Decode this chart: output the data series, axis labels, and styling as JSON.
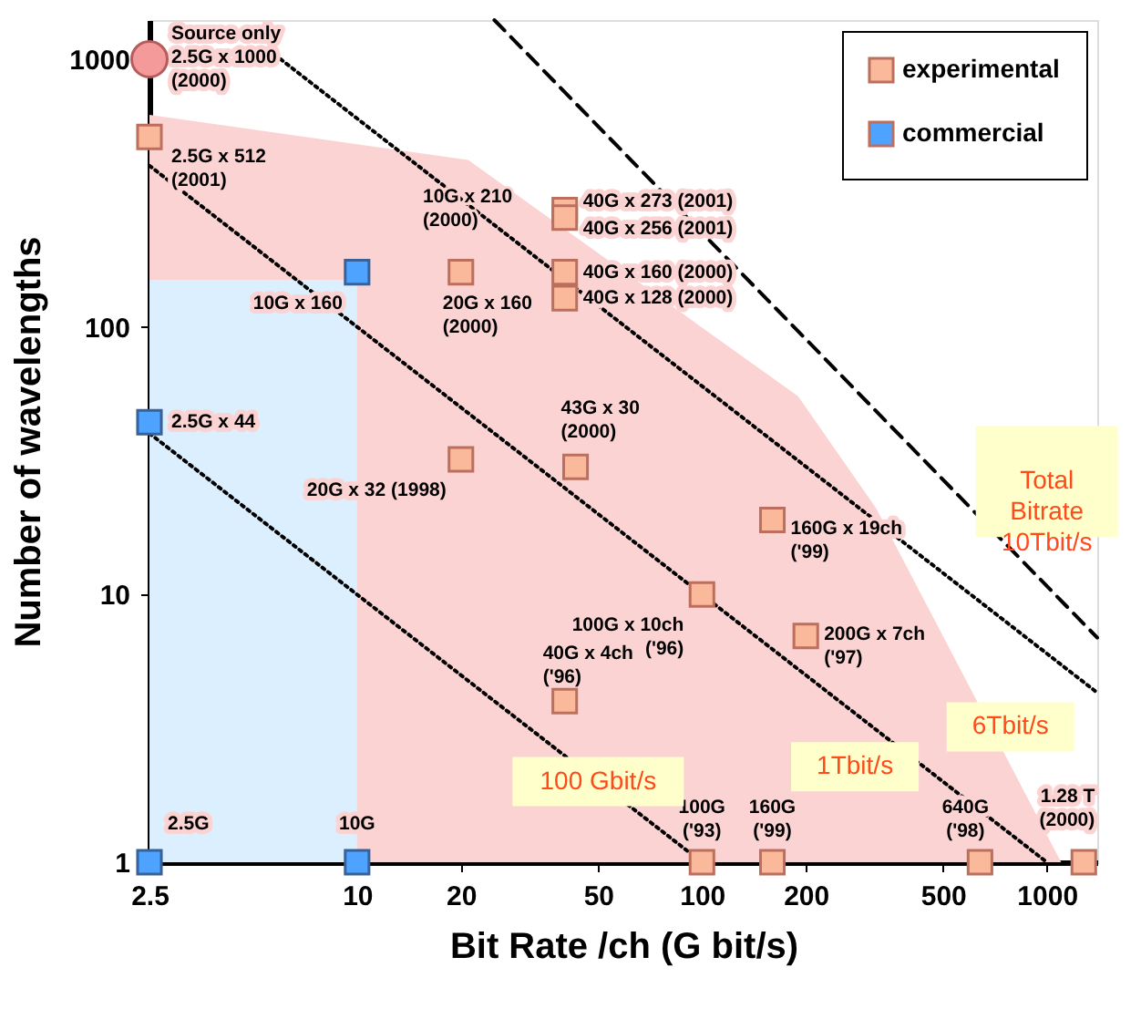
{
  "chart_data": {
    "type": "scatter",
    "xlabel": "Bit Rate /ch (G bit/s)",
    "ylabel": "Number of wavelengths",
    "log": "xy",
    "xlim": [
      2.5,
      1400
    ],
    "ylim": [
      1,
      1400
    ],
    "xticks": [
      2.5,
      10,
      20,
      50,
      100,
      200,
      500,
      1000
    ],
    "yticks": [
      1,
      10,
      100,
      1000
    ],
    "grid": false,
    "legend": "top right",
    "series": [
      {
        "type": "area",
        "color": "#fbd3d3",
        "x": [
          2.5,
          21,
          190,
          320,
          1100
        ],
        "values": [
          620,
          420,
          55,
          21,
          1
        ]
      },
      {
        "type": "area",
        "color": "#dcefff",
        "x": [
          2.5,
          10
        ],
        "values": [
          150,
          150
        ]
      },
      {
        "type": "line",
        "line_style": "dotted",
        "color": "#000000",
        "x": [
          2.5,
          100
        ],
        "values": [
          40,
          1
        ]
      },
      {
        "type": "line",
        "line_style": "dotted",
        "color": "#000000",
        "x": [
          2.5,
          1000
        ],
        "values": [
          400,
          1
        ]
      },
      {
        "type": "line",
        "line_style": "dotted",
        "color": "#000000",
        "x": [
          6,
          1400
        ],
        "values": [
          1000,
          4.3
        ]
      },
      {
        "type": "line",
        "line_style": "dashed",
        "color": "#000000",
        "x": [
          25,
          1400
        ],
        "values": [
          1400,
          6.9
        ]
      },
      {
        "marker": "circle",
        "color": "#f59a9a",
        "x": [
          2.5
        ],
        "values": [
          1000
        ]
      },
      {
        "marker": "square",
        "name": "experimental",
        "color": "#fbb99c",
        "x": [
          2.5,
          20,
          40,
          40,
          40,
          40,
          20,
          43,
          160,
          100,
          200,
          40,
          100,
          160,
          640,
          1280
        ],
        "values": [
          512,
          160,
          273,
          256,
          160,
          128,
          32,
          30,
          19,
          10,
          7,
          4,
          1,
          1,
          1,
          1
        ]
      },
      {
        "marker": "square",
        "name": "commercial",
        "color": "#4da3ff",
        "x": [
          2.5,
          10,
          2.5,
          10
        ],
        "values": [
          44,
          160,
          1,
          1
        ]
      }
    ],
    "annotations": [
      {
        "text": "Source only\n2.5G x 1000\n(2000)",
        "x": 2.5,
        "y": 1000
      },
      {
        "text": "2.5G x 512\n(2001)",
        "x": 2.5,
        "y": 512
      },
      "10G x 210\n(2000)",
      {
        "text": "10G x 160",
        "x": 10,
        "y": 160
      },
      {
        "text": "20G x 160\n(2000)",
        "x": 20,
        "y": 160
      },
      {
        "text": "40G x 273 (2001)",
        "x": 40,
        "y": 273
      },
      {
        "text": "40G x 256 (2001)",
        "x": 40,
        "y": 256
      },
      {
        "text": "40G x 160 (2000)",
        "x": 40,
        "y": 160
      },
      {
        "text": "40G x 128 (2000)",
        "x": 40,
        "y": 128
      },
      {
        "text": "43G x 30\n(2000)",
        "x": 43,
        "y": 30
      },
      {
        "text": "20G x 32 (1998)",
        "x": 20,
        "y": 32
      },
      {
        "text": "160G x 19ch\n('99)",
        "x": 160,
        "y": 19
      },
      {
        "text": "100G x 10ch\n('96)",
        "x": 100,
        "y": 10
      },
      {
        "text": "200G x 7ch\n('97)",
        "x": 200,
        "y": 7
      },
      {
        "text": "40G x 4ch\n('96)",
        "x": 40,
        "y": 4
      },
      {
        "text": "2.5G x 44",
        "x": 2.5,
        "y": 44
      },
      {
        "text": "2.5G",
        "x": 2.5,
        "y": 1
      },
      {
        "text": "10G",
        "x": 10,
        "y": 1
      },
      {
        "text": "100G\n('93)",
        "x": 100,
        "y": 1
      },
      {
        "text": "160G\n('99)",
        "x": 160,
        "y": 1
      },
      {
        "text": "640G\n('98)",
        "x": 640,
        "y": 1
      },
      {
        "text": "1.28 T\n(2000)",
        "x": 1280,
        "y": 1
      },
      {
        "text": "100 Gbit/s",
        "x": 50,
        "y": 2.0
      },
      {
        "text": "1Tbit/s",
        "x": 400,
        "y": 2.5
      },
      {
        "text": "6Tbit/s",
        "x": 1000,
        "y": 6
      },
      {
        "text": "Total\nBitrate\n10Tbit/s",
        "x": 1000,
        "y": 10
      }
    ]
  }
}
